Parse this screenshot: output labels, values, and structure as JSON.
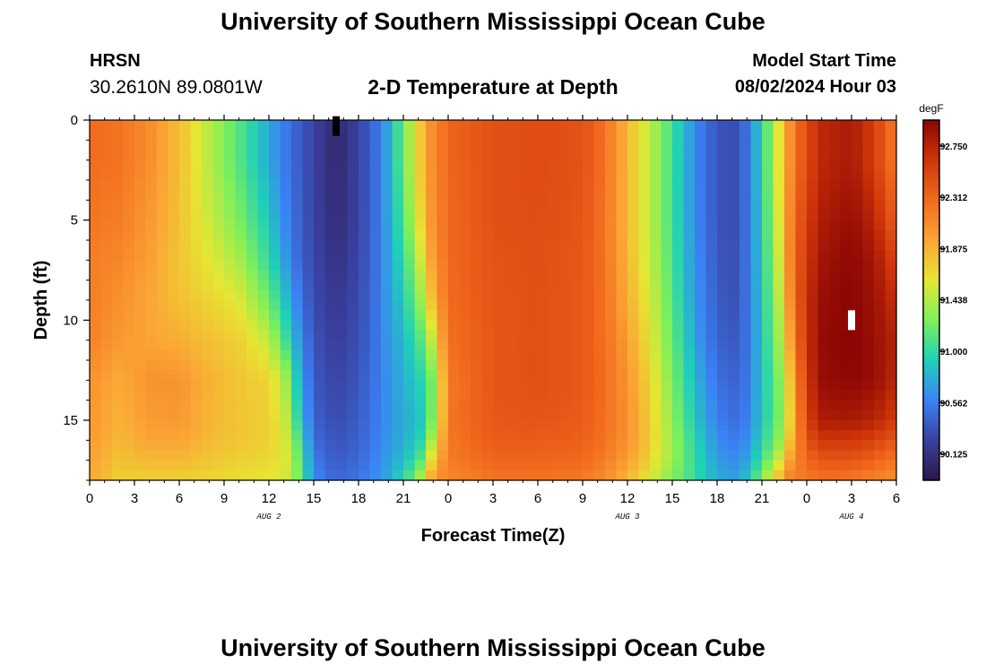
{
  "header": {
    "title": "University of Southern Mississippi Ocean Cube",
    "station_id": "HRSN",
    "station_coords": "30.2610N  89.0801W",
    "chart_title": "2-D Temperature at Depth",
    "model_start_label": "Model Start Time",
    "model_start_value": "08/02/2024 Hour 03"
  },
  "footer": {
    "title": "University of Southern Mississippi Ocean Cube"
  },
  "chart_data": {
    "type": "heatmap",
    "title": "2-D Temperature at Depth",
    "xlabel": "Forecast Time(Z)",
    "ylabel": "Depth (ft)",
    "x_range_hours": [
      0,
      54
    ],
    "x_ticks": [
      {
        "hour": 0,
        "label": "0"
      },
      {
        "hour": 3,
        "label": "3"
      },
      {
        "hour": 6,
        "label": "6"
      },
      {
        "hour": 9,
        "label": "9"
      },
      {
        "hour": 12,
        "label": "12"
      },
      {
        "hour": 15,
        "label": "15"
      },
      {
        "hour": 18,
        "label": "18"
      },
      {
        "hour": 21,
        "label": "21"
      },
      {
        "hour": 24,
        "label": "0"
      },
      {
        "hour": 27,
        "label": "3"
      },
      {
        "hour": 30,
        "label": "6"
      },
      {
        "hour": 33,
        "label": "9"
      },
      {
        "hour": 36,
        "label": "12"
      },
      {
        "hour": 39,
        "label": "15"
      },
      {
        "hour": 42,
        "label": "18"
      },
      {
        "hour": 45,
        "label": "21"
      },
      {
        "hour": 48,
        "label": "0"
      },
      {
        "hour": 51,
        "label": "3"
      },
      {
        "hour": 54,
        "label": "6"
      }
    ],
    "date_labels": [
      {
        "hour": 12,
        "label": "AUG 2"
      },
      {
        "hour": 36,
        "label": "AUG 3"
      },
      {
        "hour": 51,
        "label": "AUG 4"
      }
    ],
    "y_range_ft": [
      0,
      18
    ],
    "y_ticks": [
      0,
      5,
      10,
      15
    ],
    "y_ticks_labels": [
      "0",
      "5",
      "10",
      "15"
    ],
    "colorbar": {
      "label": "degF",
      "min": 89.9,
      "max": 92.97,
      "tick_values": [
        92.75,
        92.312,
        91.875,
        91.438,
        91.0,
        90.562,
        90.125
      ],
      "tick_labels": [
        "92.750",
        "92.312",
        "91.875",
        "91.438",
        "91.000",
        "90.562",
        "90.125"
      ],
      "colors": [
        "#2d1847",
        "#3a3f9e",
        "#3b82f6",
        "#1fd0b8",
        "#7ef05a",
        "#e6e633",
        "#fba535",
        "#f26a1e",
        "#cf3509",
        "#8a0404"
      ]
    },
    "markers": [
      {
        "hour": 16.5,
        "depth": 0.3,
        "color": "#000000"
      },
      {
        "hour": 51,
        "depth": 10,
        "color": "#ffffff"
      }
    ],
    "temperature_profile": {
      "hours": [
        0,
        2,
        4,
        6,
        8,
        10,
        12,
        13,
        14,
        15,
        16.5,
        18,
        19,
        20,
        21,
        22,
        22.5,
        23,
        23.5,
        24,
        27,
        30,
        33,
        34,
        35,
        36,
        37,
        38,
        39,
        40,
        41,
        42,
        43,
        44,
        45,
        46,
        46.5,
        47,
        48,
        49,
        51,
        52,
        53,
        54
      ],
      "depths": [
        0,
        2,
        5,
        7,
        9,
        11,
        13,
        15,
        16,
        17,
        18
      ],
      "values": [
        [
          92.28,
          92.28,
          92.22,
          92.18,
          92.18,
          92.15,
          92.05,
          92.02,
          92.0,
          91.97,
          91.93
        ],
        [
          92.24,
          92.24,
          92.18,
          92.12,
          92.06,
          92.02,
          91.92,
          91.88,
          91.85,
          91.8,
          91.72
        ],
        [
          92.08,
          92.08,
          92.02,
          91.98,
          91.94,
          91.95,
          92.05,
          92.0,
          91.95,
          91.85,
          91.72
        ],
        [
          91.82,
          91.82,
          91.8,
          91.78,
          91.8,
          91.9,
          92.05,
          92.02,
          91.95,
          91.85,
          91.72
        ],
        [
          91.45,
          91.45,
          91.52,
          91.6,
          91.7,
          91.8,
          91.88,
          91.86,
          91.85,
          91.78,
          91.68
        ],
        [
          91.12,
          91.12,
          91.25,
          91.4,
          91.58,
          91.72,
          91.78,
          91.78,
          91.78,
          91.72,
          91.65
        ],
        [
          90.75,
          90.75,
          90.88,
          91.0,
          91.2,
          91.48,
          91.7,
          91.72,
          91.72,
          91.68,
          91.6
        ],
        [
          90.55,
          90.55,
          90.62,
          90.72,
          90.88,
          91.1,
          91.45,
          91.55,
          91.6,
          91.62,
          91.55
        ],
        [
          90.4,
          90.4,
          90.42,
          90.45,
          90.55,
          90.68,
          90.82,
          90.95,
          91.1,
          91.2,
          91.25
        ],
        [
          90.25,
          90.25,
          90.26,
          90.28,
          90.3,
          90.34,
          90.38,
          90.42,
          90.48,
          90.55,
          90.62
        ],
        [
          90.05,
          90.05,
          90.08,
          90.12,
          90.18,
          90.22,
          90.26,
          90.3,
          90.34,
          90.38,
          90.45
        ],
        [
          90.25,
          90.25,
          90.26,
          90.28,
          90.3,
          90.32,
          90.36,
          90.4,
          90.42,
          90.46,
          90.52
        ],
        [
          90.45,
          90.45,
          90.45,
          90.46,
          90.47,
          90.48,
          90.5,
          90.52,
          90.54,
          90.58,
          90.62
        ],
        [
          90.75,
          90.75,
          90.74,
          90.72,
          90.7,
          90.68,
          90.66,
          90.66,
          90.67,
          90.7,
          90.75
        ],
        [
          91.2,
          91.2,
          91.1,
          91.0,
          90.9,
          90.82,
          90.78,
          90.76,
          90.78,
          90.85,
          91.0
        ],
        [
          91.7,
          91.7,
          91.6,
          91.45,
          91.28,
          91.08,
          90.92,
          90.85,
          90.9,
          91.05,
          91.35
        ],
        [
          91.95,
          91.95,
          91.88,
          91.75,
          91.52,
          91.22,
          91.02,
          91.0,
          91.1,
          91.35,
          91.75
        ],
        [
          92.1,
          92.1,
          92.08,
          92.02,
          91.88,
          91.55,
          91.28,
          91.3,
          91.48,
          91.75,
          92.02
        ],
        [
          92.2,
          92.2,
          92.18,
          92.14,
          92.08,
          91.92,
          91.7,
          91.72,
          91.85,
          92.0,
          92.1
        ],
        [
          92.32,
          92.32,
          92.3,
          92.3,
          92.28,
          92.26,
          92.2,
          92.22,
          92.2,
          92.18,
          92.12
        ],
        [
          92.45,
          92.45,
          92.45,
          92.43,
          92.42,
          92.41,
          92.42,
          92.4,
          92.38,
          92.32,
          92.22
        ],
        [
          92.48,
          92.48,
          92.47,
          92.46,
          92.45,
          92.45,
          92.45,
          92.42,
          92.38,
          92.32,
          92.22
        ],
        [
          92.44,
          92.44,
          92.42,
          92.4,
          92.4,
          92.4,
          92.4,
          92.38,
          92.35,
          92.3,
          92.2
        ],
        [
          92.32,
          92.32,
          92.3,
          92.3,
          92.3,
          92.3,
          92.32,
          92.3,
          92.28,
          92.22,
          92.1
        ],
        [
          92.12,
          92.12,
          92.1,
          92.12,
          92.14,
          92.18,
          92.2,
          92.2,
          92.18,
          92.12,
          92.0
        ],
        [
          91.85,
          91.85,
          91.84,
          91.86,
          91.9,
          91.98,
          92.04,
          92.06,
          92.05,
          91.98,
          91.85
        ],
        [
          91.6,
          91.6,
          91.6,
          91.62,
          91.68,
          91.75,
          91.82,
          91.86,
          91.86,
          91.8,
          91.65
        ],
        [
          91.35,
          91.35,
          91.35,
          91.38,
          91.42,
          91.48,
          91.55,
          91.6,
          91.62,
          91.58,
          91.45
        ],
        [
          91.05,
          91.05,
          91.05,
          91.08,
          91.12,
          91.18,
          91.26,
          91.32,
          91.36,
          91.35,
          91.28
        ],
        [
          90.75,
          90.75,
          90.76,
          90.78,
          90.82,
          90.88,
          90.96,
          91.04,
          91.1,
          91.12,
          91.1
        ],
        [
          90.52,
          90.52,
          90.52,
          90.55,
          90.58,
          90.62,
          90.7,
          90.78,
          90.85,
          90.9,
          90.92
        ],
        [
          90.36,
          90.36,
          90.36,
          90.38,
          90.4,
          90.44,
          90.5,
          90.58,
          90.64,
          90.7,
          90.78
        ],
        [
          90.3,
          90.3,
          90.3,
          90.31,
          90.32,
          90.36,
          90.42,
          90.48,
          90.54,
          90.62,
          90.72
        ],
        [
          90.5,
          90.5,
          90.5,
          90.5,
          90.5,
          90.5,
          90.52,
          90.56,
          90.62,
          90.72,
          90.85
        ],
        [
          90.95,
          90.95,
          90.92,
          90.9,
          90.88,
          90.86,
          90.85,
          90.88,
          90.94,
          91.05,
          91.3
        ],
        [
          91.55,
          91.55,
          91.5,
          91.45,
          91.38,
          91.3,
          91.2,
          91.18,
          91.25,
          91.45,
          91.8
        ],
        [
          91.8,
          91.8,
          91.78,
          91.74,
          91.66,
          91.56,
          91.42,
          91.38,
          91.48,
          91.72,
          92.05
        ],
        [
          92.15,
          92.15,
          92.22,
          92.25,
          92.2,
          92.08,
          91.9,
          91.8,
          91.9,
          92.05,
          92.2
        ],
        [
          92.5,
          92.5,
          92.58,
          92.62,
          92.66,
          92.66,
          92.62,
          92.55,
          92.45,
          92.3,
          92.18
        ],
        [
          92.72,
          92.72,
          92.8,
          92.85,
          92.9,
          92.92,
          92.9,
          92.8,
          92.62,
          92.42,
          92.25
        ],
        [
          92.82,
          92.82,
          92.9,
          92.95,
          92.97,
          92.97,
          92.95,
          92.82,
          92.62,
          92.42,
          92.2
        ],
        [
          92.66,
          92.66,
          92.8,
          92.88,
          92.9,
          92.92,
          92.92,
          92.78,
          92.58,
          92.38,
          92.15
        ],
        [
          92.45,
          92.45,
          92.62,
          92.75,
          92.82,
          92.85,
          92.85,
          92.7,
          92.5,
          92.3,
          92.1
        ],
        [
          92.18,
          92.18,
          92.35,
          92.52,
          92.66,
          92.75,
          92.72,
          92.58,
          92.4,
          92.22,
          92.05
        ]
      ]
    }
  }
}
